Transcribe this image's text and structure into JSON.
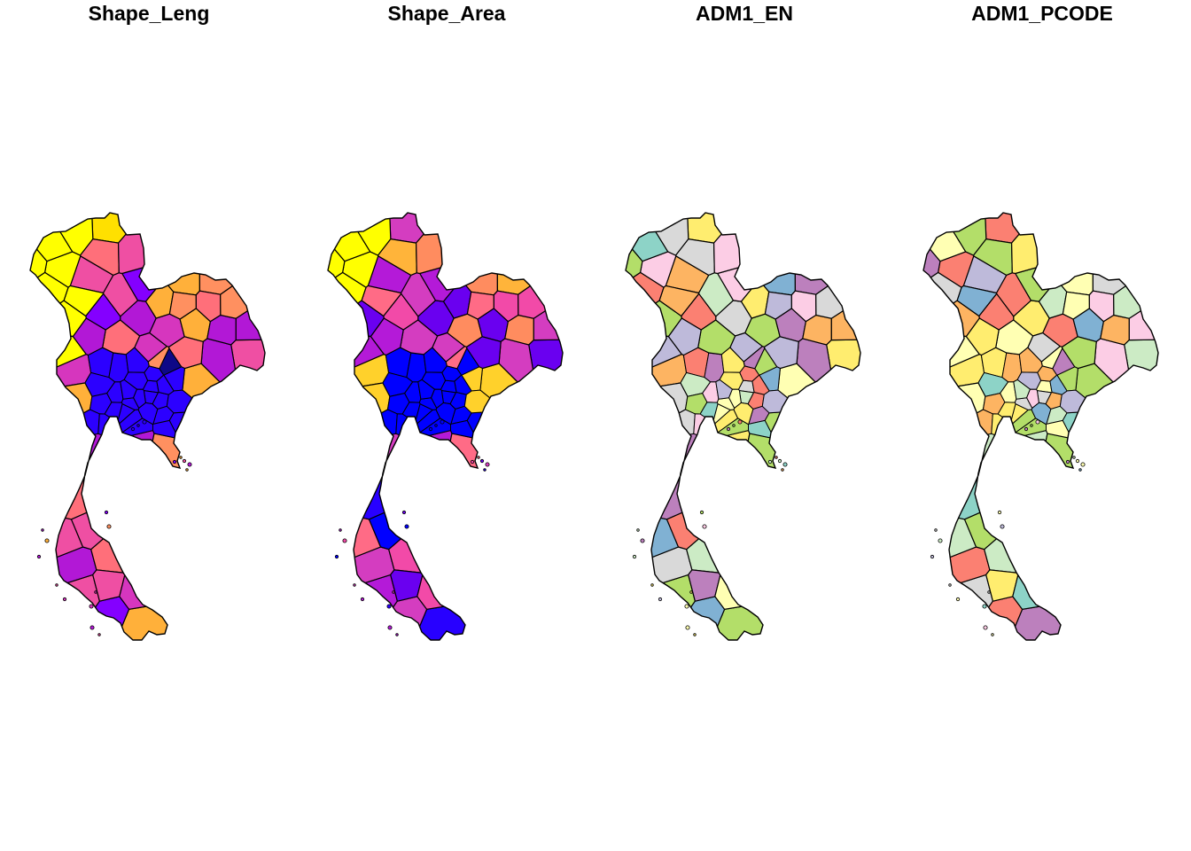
{
  "figure": {
    "panels": [
      {
        "title": "Shape_Leng",
        "palette": "sf-continuous",
        "colors": [
          "#0D0887",
          "#2C00FF",
          "#8400FF",
          "#B218D6",
          "#D636BE",
          "#EF4FA3",
          "#FF6F7A",
          "#FF9060",
          "#FFB03A",
          "#FFE000",
          "#FFFF00"
        ],
        "north_region_color": "#FFFF00"
      },
      {
        "title": "Shape_Area",
        "palette": "sf-continuous",
        "colors": [
          "#0000FF",
          "#2800FF",
          "#6A00F0",
          "#B41AD8",
          "#D43DC0",
          "#F24AA8",
          "#FF6B86",
          "#FF8C5F",
          "#FFB43A",
          "#FFD12B",
          "#FFFF00"
        ],
        "north_region_color": "#FFFF00"
      },
      {
        "title": "ADM1_EN",
        "palette": "Set3",
        "colors": [
          "#8DD3C7",
          "#FFFFB3",
          "#BEBADA",
          "#FB8072",
          "#80B1D3",
          "#FDB462",
          "#B3DE69",
          "#FCCDE5",
          "#D9D9D9",
          "#BC80BD",
          "#CCEBC5",
          "#FFED6F"
        ],
        "north_region_color": "#CCEBC5"
      },
      {
        "title": "ADM1_PCODE",
        "palette": "Set3",
        "colors": [
          "#8DD3C7",
          "#FFFFB3",
          "#BEBADA",
          "#FB8072",
          "#80B1D3",
          "#FDB462",
          "#B3DE69",
          "#FCCDE5",
          "#D9D9D9",
          "#BC80BD",
          "#CCEBC5",
          "#FFED6F"
        ],
        "north_region_color": "#CCEBC5"
      }
    ],
    "border_color": "#000000"
  }
}
